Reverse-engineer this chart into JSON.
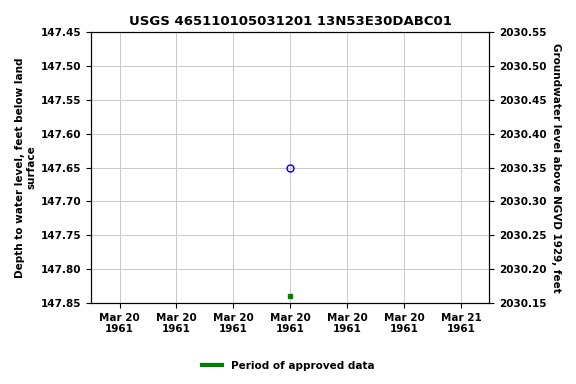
{
  "title": "USGS 465110105031201 13N53E30DABC01",
  "ylabel_left": "Depth to water level, feet below land\nsurface",
  "ylabel_right": "Groundwater level above NGVD 1929, feet",
  "ylim_left": [
    147.85,
    147.45
  ],
  "ylim_right": [
    2030.15,
    2030.55
  ],
  "yticks_left": [
    147.45,
    147.5,
    147.55,
    147.6,
    147.65,
    147.7,
    147.75,
    147.8,
    147.85
  ],
  "yticks_right": [
    2030.55,
    2030.5,
    2030.45,
    2030.4,
    2030.35,
    2030.3,
    2030.25,
    2030.2,
    2030.15
  ],
  "xtick_labels": [
    "Mar 20\n1961",
    "Mar 20\n1961",
    "Mar 20\n1961",
    "Mar 20\n1961",
    "Mar 20\n1961",
    "Mar 20\n1961",
    "Mar 21\n1961"
  ],
  "point1_depth": 147.65,
  "point1_tick_index": 3,
  "point2_depth": 147.84,
  "point2_tick_index": 3,
  "open_marker_color": "#0000cc",
  "open_marker_size": 5,
  "filled_marker_color": "#008000",
  "filled_marker_size": 3,
  "legend_label": "Period of approved data",
  "legend_color": "#008000",
  "background_color": "#ffffff",
  "plot_bg_color": "#ffffff",
  "grid_color": "#c8c8c8",
  "title_fontsize": 9.5,
  "label_fontsize": 7.5,
  "tick_fontsize": 7.5
}
